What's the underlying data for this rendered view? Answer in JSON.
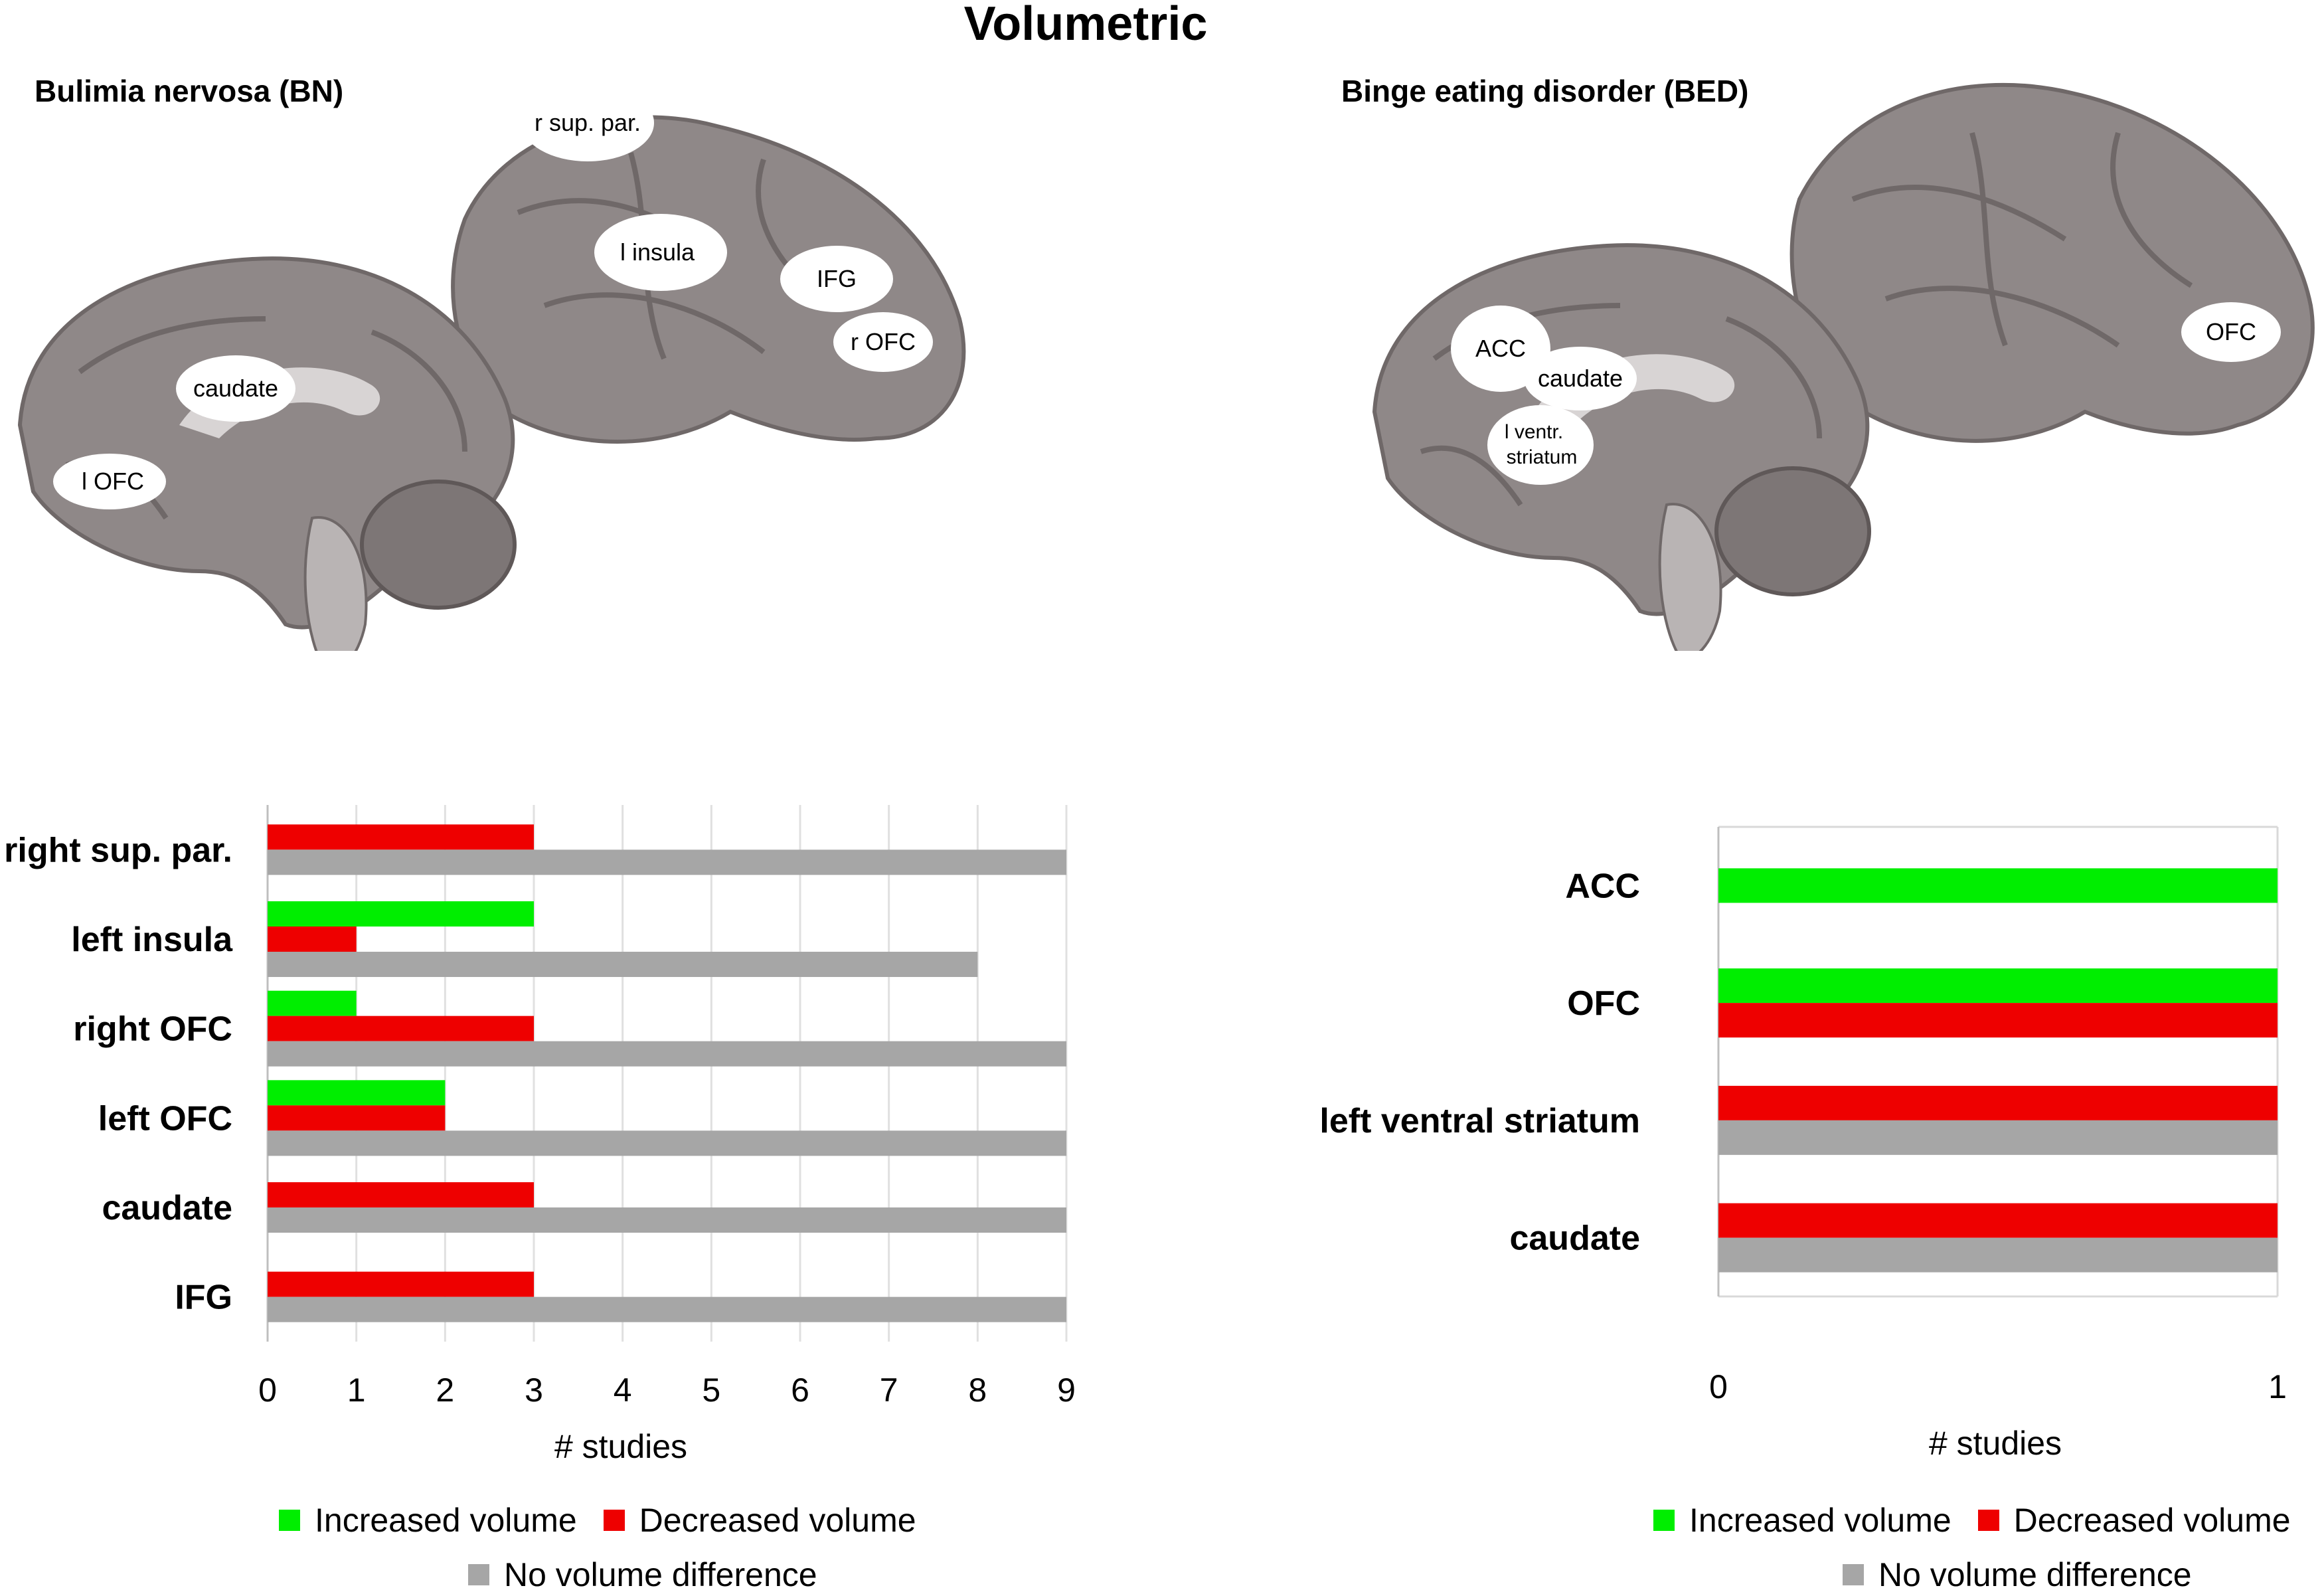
{
  "title": "Volumetric",
  "colors": {
    "increased": "#00ee00",
    "decreased": "#ee0000",
    "none": "#a6a6a6",
    "brain": "#8f8888",
    "brain_dark": "#6f6868",
    "label_bg": "#ffffff"
  },
  "bn": {
    "title": "Bulimia nervosa (BN)",
    "regions": [
      "r sup. par.",
      "l insula",
      "IFG",
      "r OFC",
      "caudate",
      "l OFC"
    ]
  },
  "bed": {
    "title": "Binge eating disorder (BED)",
    "regions": [
      "ACC",
      "caudate",
      "l ventr.",
      "striatum",
      "OFC"
    ]
  },
  "legend": {
    "increased": "Increased volume",
    "decreased": "Decreased volume",
    "none": "No volume difference"
  },
  "chart_data": [
    {
      "type": "bar",
      "orientation": "horizontal",
      "categories": [
        "right sup. par.",
        "left insula",
        "right OFC",
        "left OFC",
        "caudate",
        "IFG"
      ],
      "series": [
        {
          "name": "Increased volume",
          "values": [
            0,
            3,
            1,
            2,
            0,
            0
          ]
        },
        {
          "name": "Decreased volume",
          "values": [
            3,
            1,
            3,
            2,
            3,
            3
          ]
        },
        {
          "name": "No volume difference",
          "values": [
            9,
            8,
            9,
            9,
            9,
            9
          ]
        }
      ],
      "xlabel": "# studies",
      "xlim": [
        0,
        9
      ],
      "xticks": [
        "0",
        "1",
        "2",
        "3",
        "4",
        "5",
        "6",
        "7",
        "8",
        "9"
      ],
      "grid": true,
      "legend_position": "bottom"
    },
    {
      "type": "bar",
      "orientation": "horizontal",
      "categories": [
        "ACC",
        "OFC",
        "left ventral striatum",
        "caudate"
      ],
      "series": [
        {
          "name": "Increased volume",
          "values": [
            1,
            1,
            0,
            0
          ]
        },
        {
          "name": "Decreased volume",
          "values": [
            0,
            1,
            1,
            1
          ]
        },
        {
          "name": "No volume difference",
          "values": [
            0,
            0,
            1,
            1
          ]
        }
      ],
      "xlabel": "# studies",
      "xlim": [
        0,
        1
      ],
      "xticks": [
        "0",
        "1"
      ],
      "grid": false,
      "legend_position": "bottom"
    }
  ]
}
